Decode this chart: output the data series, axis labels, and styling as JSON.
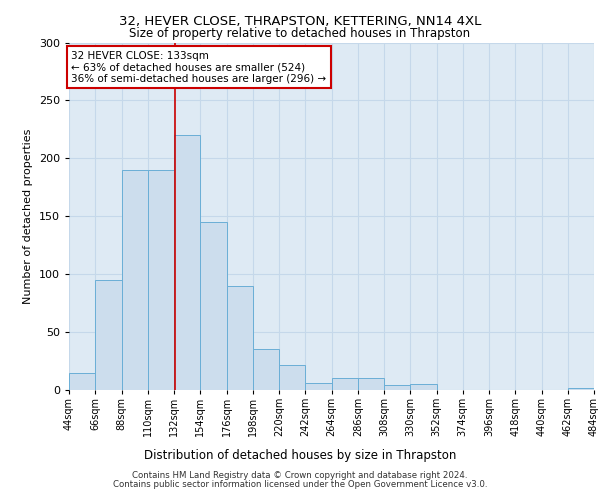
{
  "title1": "32, HEVER CLOSE, THRAPSTON, KETTERING, NN14 4XL",
  "title2": "Size of property relative to detached houses in Thrapston",
  "xlabel": "Distribution of detached houses by size in Thrapston",
  "ylabel": "Number of detached properties",
  "footer1": "Contains HM Land Registry data © Crown copyright and database right 2024.",
  "footer2": "Contains public sector information licensed under the Open Government Licence v3.0.",
  "annotation_line1": "32 HEVER CLOSE: 133sqm",
  "annotation_line2": "← 63% of detached houses are smaller (524)",
  "annotation_line3": "36% of semi-detached houses are larger (296) →",
  "property_size": 133,
  "bin_edges": [
    44,
    66,
    88,
    110,
    132,
    154,
    176,
    198,
    220,
    242,
    264,
    286,
    308,
    330,
    352,
    374,
    396,
    418,
    440,
    462,
    484
  ],
  "bar_values": [
    15,
    95,
    190,
    190,
    220,
    145,
    90,
    35,
    22,
    6,
    10,
    10,
    4,
    5,
    0,
    0,
    0,
    0,
    0,
    2
  ],
  "bar_color": "#ccdded",
  "bar_edge_color": "#6aaed6",
  "vline_color": "#cc0000",
  "vline_x": 133,
  "grid_color": "#c5d8ea",
  "background_color": "#deeaf4",
  "annotation_box_color": "#ffffff",
  "annotation_box_edge": "#cc0000",
  "ylim": [
    0,
    300
  ],
  "yticks": [
    0,
    50,
    100,
    150,
    200,
    250,
    300
  ]
}
